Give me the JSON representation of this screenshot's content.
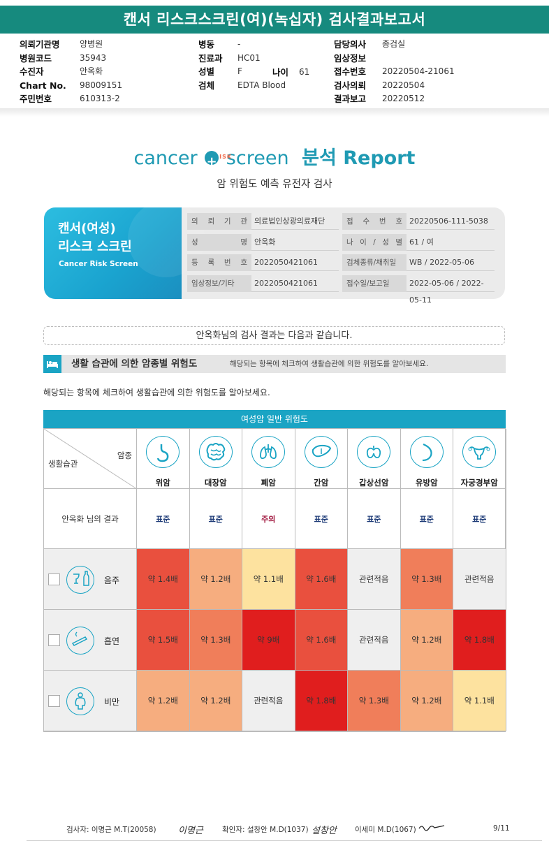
{
  "banner": {
    "title": "캔서 리스크스크린(여)(녹십자) 검사결과보고서"
  },
  "header": {
    "col1": [
      {
        "k": "의뢰기관명",
        "v": "양병원"
      },
      {
        "k": "병원코드",
        "v": "35943"
      },
      {
        "k": "수진자",
        "v": "안옥화"
      },
      {
        "k": "Chart No.",
        "v": "98009151"
      },
      {
        "k": "주민번호",
        "v": "610313-2"
      }
    ],
    "col2": [
      {
        "k": "병동",
        "v": "-"
      },
      {
        "k": "진료과",
        "v": "HC01"
      },
      {
        "k": "성별",
        "v": "F"
      },
      {
        "k": "검체",
        "v": "EDTA Blood"
      }
    ],
    "age_label": "나이",
    "age_value": "61",
    "col3": [
      {
        "k": "담당의사",
        "v": "종검실"
      },
      {
        "k": "임상정보",
        "v": ""
      },
      {
        "k": "접수번호",
        "v": "20220504-21061"
      },
      {
        "k": "검사의뢰",
        "v": "20220504"
      },
      {
        "k": "결과보고",
        "v": "20220512"
      }
    ]
  },
  "logo": {
    "word1": "cancer",
    "risk": "RISK",
    "word2": "screen",
    "report": "분석 Report"
  },
  "subtitle": "암 위험도 예측 유전자 검사",
  "card": {
    "title1": "캔서(여성)",
    "title2": "리스크 스크린",
    "title_en": "Cancer Risk Screen",
    "rows": [
      {
        "k1": "의 뢰 기 관",
        "v1": "의료법인상광의료재단",
        "k2": "접 수 번 호",
        "v2": "20220506-111-5038"
      },
      {
        "k1": "성 명",
        "v1": "안옥화",
        "k2": "나 이 / 성 별",
        "v2": "61 / 여"
      },
      {
        "k1": "등 록 번 호",
        "v1": "2022050421061",
        "k2": "검체종류/채취일",
        "v2": "WB / 2022-05-06"
      },
      {
        "k1": "임상정보/기타",
        "v1": "2022050421061",
        "k2": "접수일/보고일",
        "v2": "2022-05-06 / 2022-05-11"
      }
    ]
  },
  "result_line": "안옥화님의 검사 결과는 다음과 같습니다.",
  "section": {
    "title": "생활 습관에 의한 암종별 위험도",
    "desc": "해당되는 항목에 체크하여 생활습관에 의한 위험도를 알아보세요."
  },
  "hint": "해당되는 항목에 체크하여 생활습관에 의한 위험도를 알아보세요.",
  "table": {
    "title": "여성암 일반 위험도",
    "corner_top": "암종",
    "corner_bottom": "생활습관",
    "cancers": [
      "위암",
      "대장암",
      "폐암",
      "간암",
      "갑상선암",
      "유방암",
      "자궁경부암"
    ],
    "cancer_icons": [
      "stomach-icon",
      "colon-icon",
      "lung-icon",
      "liver-icon",
      "thyroid-icon",
      "breast-icon",
      "uterus-icon"
    ],
    "result_label": "안옥화 님의 결과",
    "results": [
      "표준",
      "표준",
      "주의",
      "표준",
      "표준",
      "표준",
      "표준"
    ],
    "result_colors": [
      "#1f3c78",
      "#1f3c78",
      "#a0143c",
      "#1f3c78",
      "#1f3c78",
      "#1f3c78",
      "#1f3c78"
    ],
    "habits": [
      {
        "label": "음주",
        "icon": "alcohol-icon",
        "values": [
          "약 1.4배",
          "약 1.2배",
          "약 1.1배",
          "약 1.6배",
          "관련적음",
          "약 1.3배",
          "관련적음"
        ],
        "colors": [
          "#e9503e",
          "#f6ad7f",
          "#fde29f",
          "#e9503e",
          "#efefef",
          "#f07e5a",
          "#efefef"
        ]
      },
      {
        "label": "흡연",
        "icon": "smoking-icon",
        "values": [
          "약 1.5배",
          "약 1.3배",
          "약 9배",
          "약 1.6배",
          "관련적음",
          "약 1.2배",
          "약 1.8배"
        ],
        "colors": [
          "#e9503e",
          "#f07e5a",
          "#e01e1e",
          "#e9503e",
          "#efefef",
          "#f6ad7f",
          "#e01e1e"
        ]
      },
      {
        "label": "비만",
        "icon": "obesity-icon",
        "values": [
          "약 1.2배",
          "약 1.2배",
          "관련적음",
          "약 1.8배",
          "약 1.3배",
          "약 1.2배",
          "약 1.1배"
        ],
        "colors": [
          "#f6ad7f",
          "#f6ad7f",
          "#efefef",
          "#e01e1e",
          "#f07e5a",
          "#f6ad7f",
          "#fde29f"
        ]
      }
    ]
  },
  "footer": {
    "tester": "검사자: 이명근 M.T(20058)",
    "tester_sig": "이명근",
    "confirmer": "확인자: 설창안 M.D(1037)",
    "confirmer_sig": "설창안",
    "doctor": "이세미 M.D(1067)",
    "page": "9/11"
  }
}
